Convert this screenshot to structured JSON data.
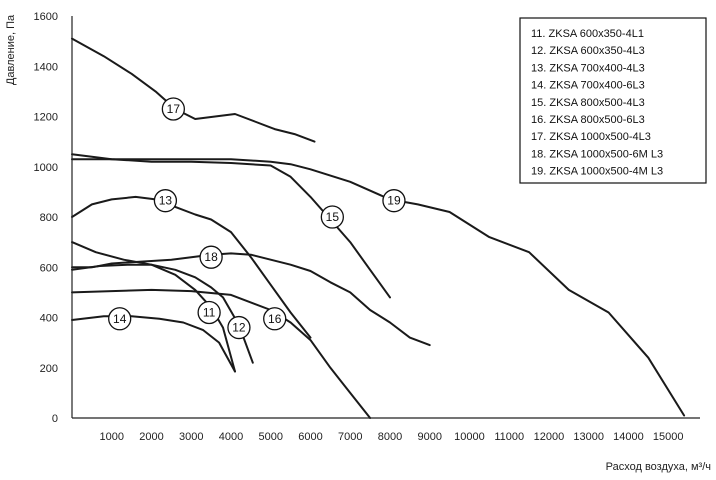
{
  "chart_data": {
    "type": "line",
    "title": "",
    "xlabel": "Расход воздуха, м³/ч",
    "ylabel": "Давление, Па",
    "xlim": [
      0,
      15800
    ],
    "ylim": [
      0,
      1600
    ],
    "x_ticks": [
      "1000",
      "2000",
      "3000",
      "4000",
      "5000",
      "6000",
      "7000",
      "8000",
      "9000",
      "10000",
      "11000",
      "12000",
      "13000",
      "14000",
      "15000"
    ],
    "x_tick_values": [
      1000,
      2000,
      3000,
      4000,
      5000,
      6000,
      7000,
      8000,
      9000,
      10000,
      11000,
      12000,
      13000,
      14000,
      15000
    ],
    "y_ticks": [
      "0",
      "200",
      "400",
      "600",
      "800",
      "1000",
      "1200",
      "1400",
      "1600"
    ],
    "y_tick_values": [
      0,
      200,
      400,
      600,
      800,
      1000,
      1200,
      1400,
      1600
    ],
    "grid": false,
    "legend_position": "top-right",
    "legend": [
      "11. ZKSA 600x350-4L1",
      "12. ZKSA 600x350-4L3",
      "13. ZKSA 700x400-4L3",
      "14. ZKSA 700x400-6L3",
      "15. ZKSA 800x500-4L3",
      "16. ZKSA 800x500-6L3",
      "17. ZKSA 1000x500-4L3",
      "18. ZKSA 1000x500-6M L3",
      "19. ZKSA 1000x500-4M L3"
    ],
    "series": [
      {
        "label": "11",
        "label_at": [
          3450,
          420
        ],
        "x": [
          0,
          600,
          1300,
          2000,
          2600,
          3100,
          3500,
          3800,
          4100
        ],
        "y": [
          700,
          660,
          630,
          610,
          570,
          510,
          440,
          360,
          185
        ]
      },
      {
        "label": "12",
        "label_at": [
          4200,
          360
        ],
        "x": [
          0,
          700,
          1400,
          2000,
          2600,
          3100,
          3500,
          3800,
          4200,
          4550
        ],
        "y": [
          590,
          605,
          610,
          610,
          590,
          560,
          520,
          480,
          370,
          220
        ]
      },
      {
        "label": "13",
        "label_at": [
          2350,
          865
        ],
        "x": [
          0,
          500,
          1000,
          1600,
          2100,
          2600,
          3100,
          3500,
          4000,
          4500,
          5000,
          5500,
          6000
        ],
        "y": [
          800,
          850,
          870,
          880,
          870,
          840,
          810,
          790,
          740,
          640,
          530,
          420,
          320
        ]
      },
      {
        "label": "14",
        "label_at": [
          1200,
          395
        ],
        "x": [
          0,
          800,
          1500,
          2200,
          2800,
          3300,
          3700,
          4100
        ],
        "y": [
          390,
          405,
          405,
          395,
          380,
          350,
          300,
          185
        ]
      },
      {
        "label": "15",
        "label_at": [
          6550,
          800
        ],
        "x": [
          0,
          1000,
          2000,
          3000,
          4000,
          5000,
          5500,
          6000,
          6500,
          7000,
          7500,
          8000
        ],
        "y": [
          1050,
          1030,
          1020,
          1020,
          1015,
          1005,
          960,
          880,
          790,
          700,
          590,
          480
        ]
      },
      {
        "label": "16",
        "label_at": [
          5100,
          395
        ],
        "x": [
          0,
          1000,
          2000,
          3000,
          4000,
          5000,
          5500,
          6000,
          6500,
          7000,
          7500
        ],
        "y": [
          500,
          505,
          510,
          505,
          490,
          430,
          380,
          310,
          200,
          100,
          0
        ]
      },
      {
        "label": "17",
        "label_at": [
          2550,
          1230
        ],
        "x": [
          0,
          800,
          1500,
          2100,
          2600,
          3100,
          3600,
          4100,
          4600,
          5100,
          5600,
          6100
        ],
        "y": [
          1510,
          1440,
          1370,
          1300,
          1230,
          1190,
          1200,
          1210,
          1180,
          1150,
          1130,
          1100
        ]
      },
      {
        "label": "18",
        "label_at": [
          3500,
          640
        ],
        "x": [
          0,
          500,
          1000,
          1500,
          2000,
          2500,
          3000,
          3500,
          4000,
          4500,
          5000,
          5500,
          6000,
          6500,
          7000,
          7500,
          8000,
          8500,
          9000
        ],
        "y": [
          600,
          600,
          615,
          620,
          625,
          630,
          640,
          650,
          655,
          650,
          630,
          610,
          585,
          540,
          500,
          430,
          380,
          320,
          290
        ]
      },
      {
        "label": "19",
        "label_at": [
          8100,
          865
        ],
        "x": [
          0,
          1000,
          2000,
          3000,
          4000,
          5000,
          5500,
          6000,
          7000,
          8000,
          8700,
          9500,
          10500,
          11500,
          12500,
          13500,
          14500,
          15400
        ],
        "y": [
          1030,
          1030,
          1030,
          1030,
          1030,
          1020,
          1010,
          990,
          940,
          870,
          850,
          820,
          720,
          660,
          510,
          420,
          240,
          10
        ]
      }
    ]
  }
}
